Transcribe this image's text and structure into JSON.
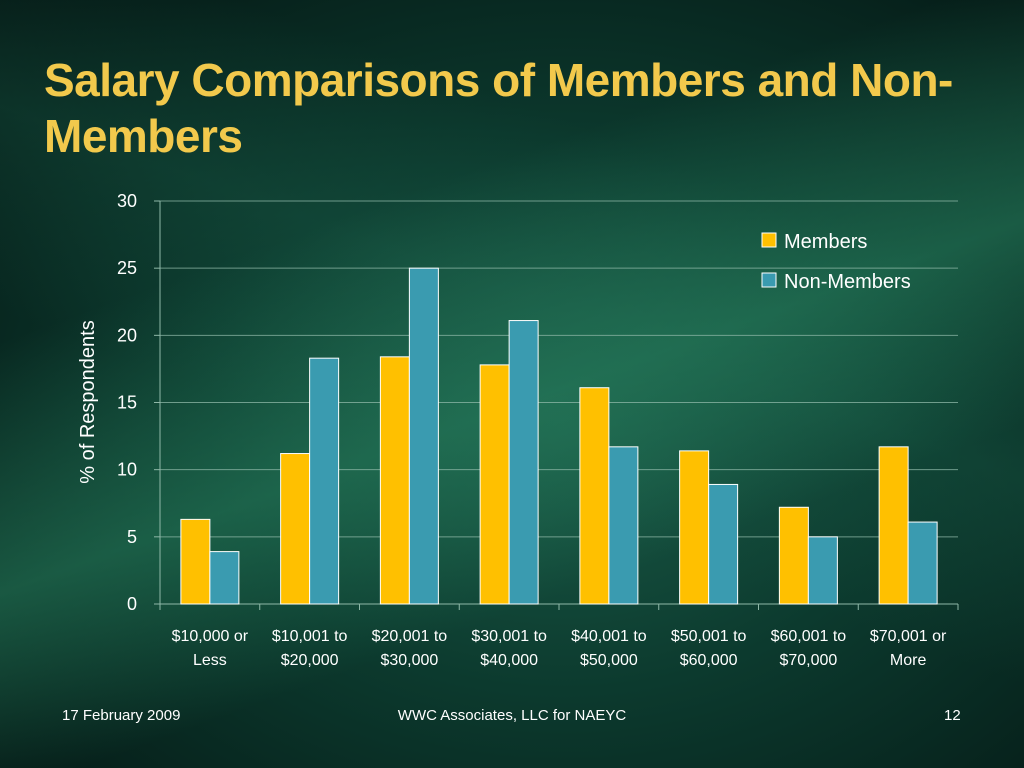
{
  "slide": {
    "title": "Salary Comparisons of Members and Non-Members",
    "footer_date": "17 February 2009",
    "footer_center": "WWC Associates, LLC for NAEYC",
    "page_number": "12"
  },
  "colors": {
    "members": "#ffc000",
    "non_members": "#3a9bb0",
    "title": "#f2c94c",
    "gridline": "#8fb8a8"
  },
  "chart_data": {
    "type": "bar",
    "categories": [
      [
        "$10,000 or",
        "Less"
      ],
      [
        "$10,001 to",
        "$20,000"
      ],
      [
        "$20,001 to",
        "$30,000"
      ],
      [
        "$30,001 to",
        "$40,000"
      ],
      [
        "$40,001 to",
        "$50,000"
      ],
      [
        "$50,001 to",
        "$60,000"
      ],
      [
        "$60,001 to",
        "$70,000"
      ],
      [
        "$70,001 or",
        "More"
      ]
    ],
    "series": [
      {
        "name": "Members",
        "values": [
          6.3,
          11.2,
          18.4,
          17.8,
          16.1,
          11.4,
          7.2,
          11.7
        ]
      },
      {
        "name": "Non-Members",
        "values": [
          3.9,
          18.3,
          25.0,
          21.1,
          11.7,
          8.9,
          5.0,
          6.1
        ]
      }
    ],
    "ylabel": "% of Respondents",
    "xlabel": "",
    "ylim": [
      0,
      30
    ],
    "yticks": [
      0,
      5,
      10,
      15,
      20,
      25,
      30
    ],
    "grid": true,
    "legend": "top-right"
  }
}
